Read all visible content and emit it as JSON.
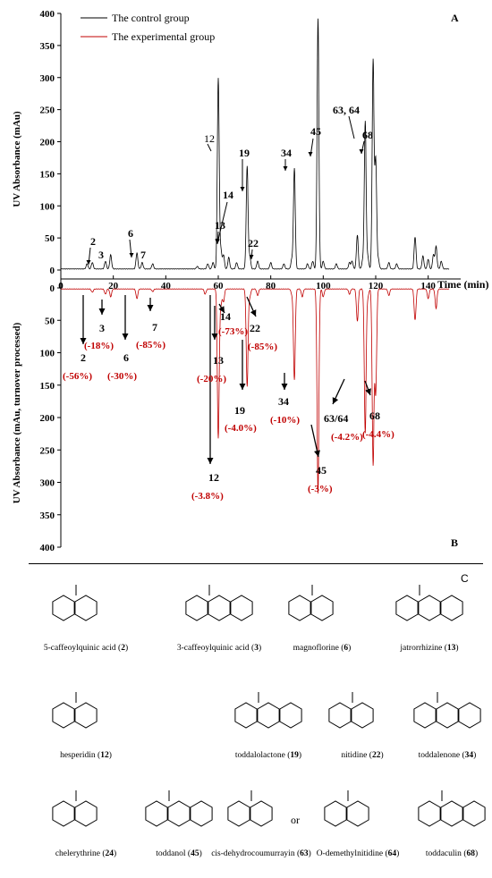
{
  "chart_data": {
    "type": "line",
    "panel_a": "A",
    "panel_b": "B",
    "panel_c": "C",
    "ylabel_top": "UV Absorbance  (mAu)",
    "ylabel_bottom": "UV Absorbance  (mAu, turnover processed)",
    "xlabel": "Time (min)",
    "x_ticks": [
      "0",
      "20",
      "40",
      "60",
      "80",
      "100",
      "120",
      "140"
    ],
    "xlim": [
      0,
      150
    ],
    "y_ticks_top": [
      "0",
      "50",
      "100",
      "150",
      "200",
      "250",
      "300",
      "350",
      "400"
    ],
    "y_ticks_bottom": [
      "0",
      "50",
      "100",
      "150",
      "200",
      "250",
      "300",
      "350",
      "400"
    ],
    "ylim": [
      0,
      400
    ],
    "colors": {
      "control": "#000000",
      "experimental": "#c00000",
      "pct": "#c00000"
    },
    "series": [
      {
        "name": "The control group",
        "peaks": [
          [
            10,
            8
          ],
          [
            12,
            10
          ],
          [
            17,
            12
          ],
          [
            19,
            22
          ],
          [
            29,
            25
          ],
          [
            31,
            10
          ],
          [
            35,
            8
          ],
          [
            52,
            4
          ],
          [
            56,
            8
          ],
          [
            58,
            10
          ],
          [
            60,
            297
          ],
          [
            61,
            30
          ],
          [
            62,
            22
          ],
          [
            64,
            18
          ],
          [
            67,
            10
          ],
          [
            71,
            160
          ],
          [
            72,
            20
          ],
          [
            75,
            12
          ],
          [
            80,
            10
          ],
          [
            85,
            8
          ],
          [
            88,
            14
          ],
          [
            89,
            157
          ],
          [
            94,
            8
          ],
          [
            96,
            12
          ],
          [
            98,
            390
          ],
          [
            100,
            12
          ],
          [
            105,
            8
          ],
          [
            110,
            10
          ],
          [
            111,
            12
          ],
          [
            113,
            53
          ],
          [
            115,
            12
          ],
          [
            116,
            230
          ],
          [
            117,
            18
          ],
          [
            119,
            325
          ],
          [
            120,
            170
          ],
          [
            121,
            15
          ],
          [
            125,
            10
          ],
          [
            128,
            8
          ],
          [
            135,
            50
          ],
          [
            138,
            20
          ],
          [
            140,
            15
          ],
          [
            142,
            22
          ],
          [
            143,
            35
          ],
          [
            145,
            12
          ]
        ]
      },
      {
        "name": "The experimental group",
        "peaks": [
          [
            12,
            5
          ],
          [
            17,
            8
          ],
          [
            19,
            12
          ],
          [
            29,
            15
          ],
          [
            35,
            4
          ],
          [
            55,
            8
          ],
          [
            60,
            230
          ],
          [
            61,
            24
          ],
          [
            62,
            20
          ],
          [
            71,
            150
          ],
          [
            72,
            12
          ],
          [
            75,
            10
          ],
          [
            88,
            7
          ],
          [
            89,
            140
          ],
          [
            92,
            12
          ],
          [
            98,
            315
          ],
          [
            100,
            12
          ],
          [
            110,
            8
          ],
          [
            113,
            50
          ],
          [
            116,
            222
          ],
          [
            117,
            12
          ],
          [
            119,
            270
          ],
          [
            120,
            160
          ],
          [
            125,
            10
          ],
          [
            135,
            48
          ],
          [
            140,
            15
          ],
          [
            143,
            30
          ]
        ]
      }
    ],
    "top_labels": [
      "2",
      "3",
      "6",
      "7",
      "12",
      "13",
      "14",
      "19",
      "22",
      "34",
      "45",
      "63, 64",
      "68"
    ],
    "bottom_labels": [
      {
        "id": "2",
        "pct": "(-56%)"
      },
      {
        "id": "3",
        "pct": "(-18%)"
      },
      {
        "id": "6",
        "pct": "(-30%)"
      },
      {
        "id": "7",
        "pct": "(-85%)"
      },
      {
        "id": "12",
        "pct": "(-3.8%)"
      },
      {
        "id": "13",
        "pct": "(-20%)"
      },
      {
        "id": "14",
        "pct": "(-73%)"
      },
      {
        "id": "19",
        "pct": "(-4.0%)"
      },
      {
        "id": "22",
        "pct": "(-85%)"
      },
      {
        "id": "34",
        "pct": "(-10%)"
      },
      {
        "id": "45",
        "pct": "(-3%)"
      },
      {
        "id": "63/64",
        "pct": "(-4.2%)"
      },
      {
        "id": "68",
        "pct": "(-4.4%)"
      }
    ]
  },
  "compounds": [
    {
      "name": "5-caffeoylquinic acid",
      "num": "2"
    },
    {
      "name": "3-caffeoylquinic acid",
      "num": "3"
    },
    {
      "name": "magnoflorine",
      "num": "6"
    },
    {
      "name": "jatrorrhizine",
      "num": "13"
    },
    {
      "name": "hesperidin",
      "num": "12"
    },
    {
      "name": "toddalolactone",
      "num": "19"
    },
    {
      "name": "nitidine",
      "num": "22"
    },
    {
      "name": "toddalenone",
      "num": "34"
    },
    {
      "name": "chelerythrine",
      "num": "24"
    },
    {
      "name": "toddanol",
      "num": "45"
    },
    {
      "name": "cis-dehydrocoumurrayin",
      "num": "63"
    },
    {
      "name": "or",
      "num": ""
    },
    {
      "name": "O-demethylnitidine",
      "num": "64"
    },
    {
      "name": "toddaculin",
      "num": "68"
    }
  ]
}
